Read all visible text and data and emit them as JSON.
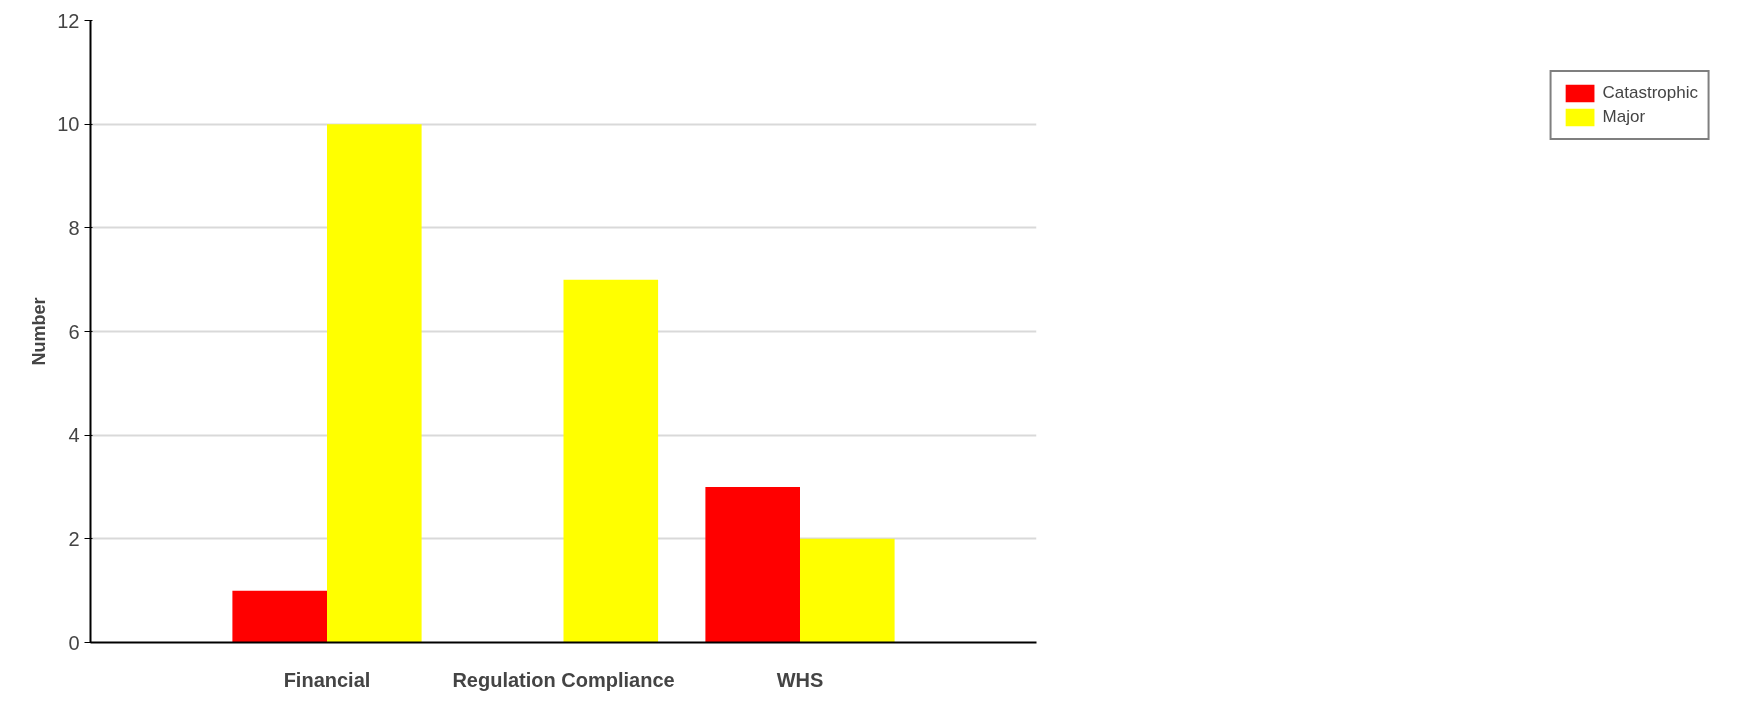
{
  "chart_data": {
    "type": "bar",
    "ylabel": "Number",
    "categories": [
      "Financial",
      "Regulation Compliance",
      "WHS"
    ],
    "series": [
      {
        "name": "Catastrophic",
        "color": "#ff0000",
        "values": [
          1,
          0,
          3
        ]
      },
      {
        "name": "Major",
        "color": "#ffff00",
        "values": [
          10,
          7,
          2
        ]
      }
    ],
    "ylim": [
      0,
      12
    ],
    "yticks": [
      0,
      2,
      4,
      6,
      8,
      10,
      12
    ],
    "grid": "y",
    "legend": "right"
  }
}
